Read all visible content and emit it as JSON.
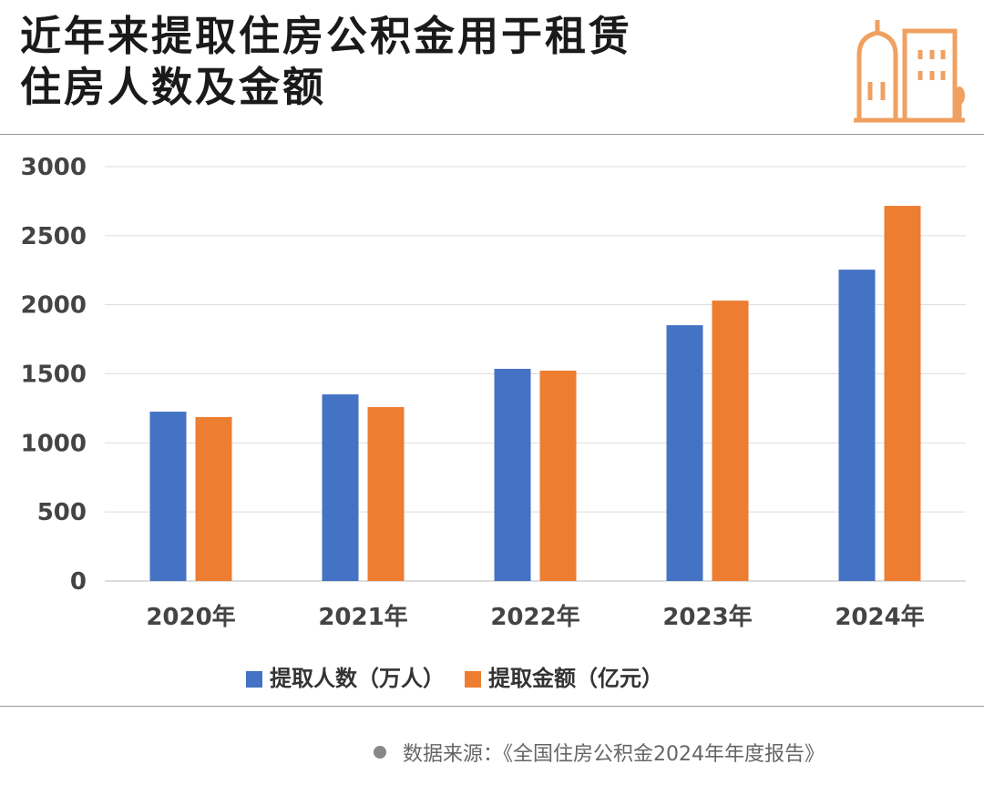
{
  "title_lines": [
    "近年来提取住房公积金用于租赁",
    "住房人数及金额"
  ],
  "colors": {
    "series1": "#4472c4",
    "series2": "#ed7d31",
    "accent": "#f0a060"
  },
  "chart_data": {
    "type": "bar",
    "title": "近年来提取住房公积金用于租赁住房人数及金额",
    "categories": [
      "2020年",
      "2021年",
      "2022年",
      "2023年",
      "2024年"
    ],
    "series": [
      {
        "name": "提取人数（万人）",
        "values": [
          1226,
          1351,
          1536,
          1852,
          2254
        ]
      },
      {
        "name": "提取金额（亿元）",
        "values": [
          1187,
          1259,
          1523,
          2030,
          2716
        ]
      }
    ],
    "yticks": [
      "0",
      "500",
      "1000",
      "1500",
      "2000",
      "2500",
      "3000"
    ],
    "ylim": [
      0,
      3000
    ],
    "grid": true,
    "legend_position": "bottom"
  },
  "source": "数据来源：《全国住房公积金2024年年度报告》"
}
